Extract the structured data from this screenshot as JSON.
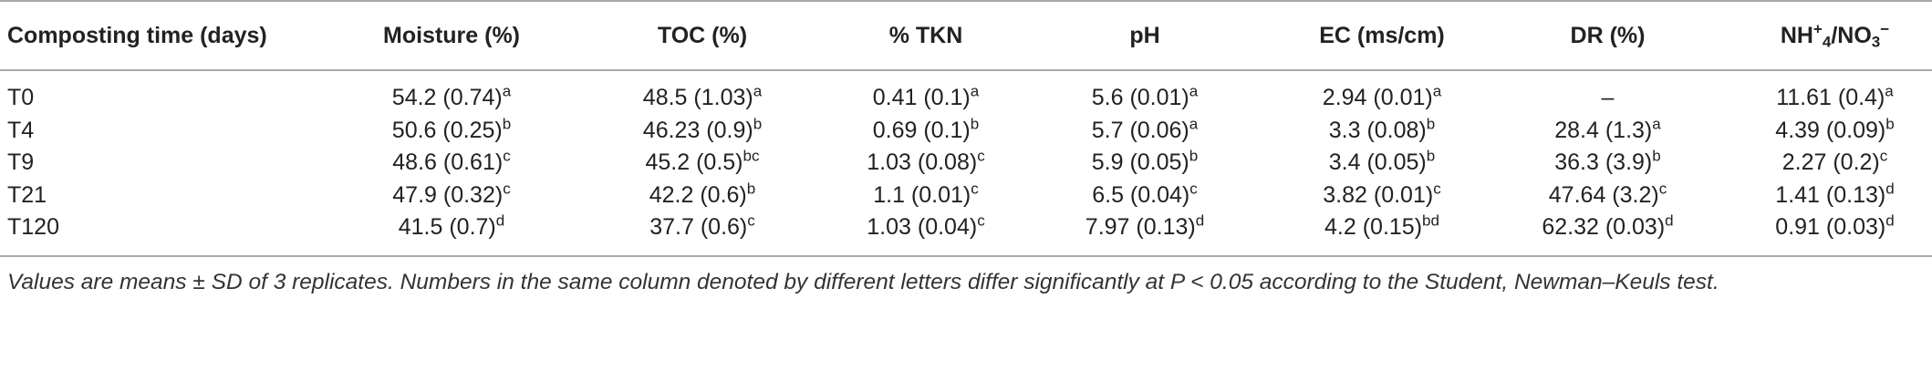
{
  "table": {
    "headers": [
      "Composting time (days)",
      "Moisture (%)",
      "TOC (%)",
      "% TKN",
      "pH",
      "EC (ms/cm)",
      "DR (%)",
      [
        {
          "text": "NH"
        },
        {
          "text": "+",
          "pos": "sup"
        },
        {
          "text": "4",
          "pos": "sub"
        },
        {
          "text": "/NO"
        },
        {
          "text": "3",
          "pos": "sub"
        },
        {
          "text": "−",
          "pos": "sup"
        }
      ]
    ],
    "rows": [
      {
        "label": "T0",
        "cells": [
          {
            "text": "54.2 (0.74)",
            "sup": "a"
          },
          {
            "text": "48.5 (1.03)",
            "sup": "a"
          },
          {
            "text": "0.41 (0.1)",
            "sup": "a"
          },
          {
            "text": "5.6 (0.01)",
            "sup": "a"
          },
          {
            "text": "2.94 (0.01)",
            "sup": "a"
          },
          {
            "text": "–"
          },
          {
            "text": "11.61 (0.4)",
            "sup": "a"
          }
        ]
      },
      {
        "label": "T4",
        "cells": [
          {
            "text": "50.6 (0.25)",
            "sup": "b"
          },
          {
            "text": "46.23 (0.9)",
            "sup": "b"
          },
          {
            "text": "0.69 (0.1)",
            "sup": "b"
          },
          {
            "text": "5.7 (0.06)",
            "sup": "a"
          },
          {
            "text": "3.3 (0.08)",
            "sup": "b"
          },
          {
            "text": "28.4 (1.3)",
            "sup": "a"
          },
          {
            "text": "4.39 (0.09)",
            "sup": "b"
          }
        ]
      },
      {
        "label": "T9",
        "cells": [
          {
            "text": "48.6 (0.61)",
            "sup": "c"
          },
          {
            "text": "45.2 (0.5)",
            "sup": "bc"
          },
          {
            "text": "1.03 (0.08)",
            "sup": "c"
          },
          {
            "text": "5.9 (0.05)",
            "sup": "b"
          },
          {
            "text": "3.4 (0.05)",
            "sup": "b"
          },
          {
            "text": "36.3 (3.9)",
            "sup": "b"
          },
          {
            "text": "2.27 (0.2)",
            "sup": "c"
          }
        ]
      },
      {
        "label": "T21",
        "cells": [
          {
            "text": "47.9 (0.32)",
            "sup": "c"
          },
          {
            "text": "42.2 (0.6)",
            "sup": "b"
          },
          {
            "text": "1.1 (0.01)",
            "sup": "c"
          },
          {
            "text": "6.5 (0.04)",
            "sup": "c"
          },
          {
            "text": "3.82 (0.01)",
            "sup": "c"
          },
          {
            "text": "47.64 (3.2)",
            "sup": "c"
          },
          {
            "text": "1.41 (0.13)",
            "sup": "d"
          }
        ]
      },
      {
        "label": "T120",
        "cells": [
          {
            "text": "41.5 (0.7)",
            "sup": "d"
          },
          {
            "text": "37.7 (0.6)",
            "sup": "c"
          },
          {
            "text": "1.03 (0.04)",
            "sup": "c"
          },
          {
            "text": "7.97 (0.13)",
            "sup": "d"
          },
          {
            "text": "4.2 (0.15)",
            "sup": "bd"
          },
          {
            "text": "62.32 (0.03)",
            "sup": "d"
          },
          {
            "text": "0.91 (0.03)",
            "sup": "d"
          }
        ]
      }
    ],
    "footnote": "Values are means ± SD of 3 replicates. Numbers in the same column denoted by different letters differ significantly at P < 0.05 according to the Student, Newman–Keuls test."
  }
}
